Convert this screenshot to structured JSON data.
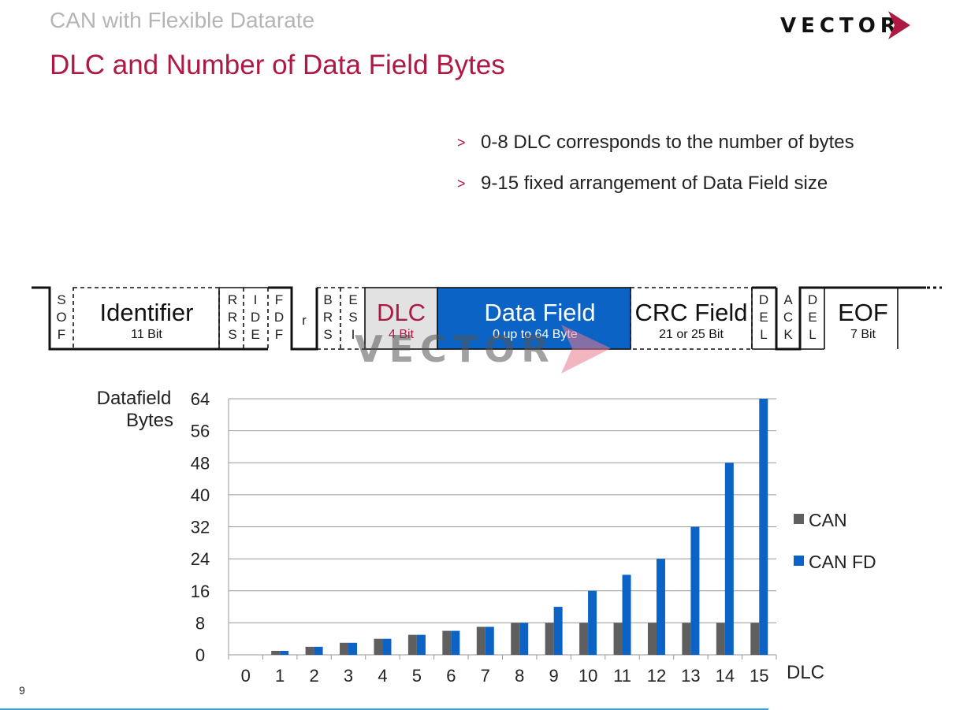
{
  "slide": {
    "subtitle": "CAN with Flexible Datarate",
    "title": "DLC and Number of Data Field Bytes",
    "page_number": "9",
    "logo_text": "VECTOR",
    "watermark_text": "VECTOR",
    "accent": "#ae1943",
    "brand_blue": "#0b63c5"
  },
  "bullets": [
    "0-8 DLC corresponds to the number of bytes",
    "9-15 fixed arrangement of Data Field size"
  ],
  "frame": {
    "sof": [
      "S",
      "O",
      "F"
    ],
    "identifier": {
      "name": "Identifier",
      "size": "11 Bit"
    },
    "rrs": [
      "R",
      "R",
      "S"
    ],
    "ide": [
      "I",
      "D",
      "E"
    ],
    "fdf": [
      "F",
      "D",
      "F"
    ],
    "r": "r",
    "brs": [
      "B",
      "R",
      "S"
    ],
    "esi": [
      "E",
      "S",
      "I"
    ],
    "dlc": {
      "name": "DLC",
      "size": "4 Bit"
    },
    "data": {
      "name": "Data Field",
      "size": "0 up to 64 Byte"
    },
    "crc": {
      "name": "CRC Field",
      "size": "21 or 25 Bit"
    },
    "del1": [
      "D",
      "E",
      "L"
    ],
    "ack": [
      "A",
      "C",
      "K"
    ],
    "del2": [
      "D",
      "E",
      "L"
    ],
    "eof": {
      "name": "EOF",
      "size": "7 Bit"
    }
  },
  "chart_data": {
    "type": "bar",
    "ylabel": "Datafield Bytes",
    "xlabel": "DLC",
    "categories": [
      "0",
      "1",
      "2",
      "3",
      "4",
      "5",
      "6",
      "7",
      "8",
      "9",
      "10",
      "11",
      "12",
      "13",
      "14",
      "15"
    ],
    "yticks": [
      "0",
      "8",
      "16",
      "24",
      "32",
      "40",
      "48",
      "56",
      "64"
    ],
    "ylim": [
      0,
      64
    ],
    "grid": true,
    "legend_position": "right",
    "series": [
      {
        "name": "CAN",
        "color": "#5f5f5f",
        "values": [
          0,
          1,
          2,
          3,
          4,
          5,
          6,
          7,
          8,
          8,
          8,
          8,
          8,
          8,
          8,
          8
        ]
      },
      {
        "name": "CAN FD",
        "color": "#0b63c5",
        "values": [
          0,
          1,
          2,
          3,
          4,
          5,
          6,
          7,
          8,
          12,
          16,
          20,
          24,
          32,
          48,
          64
        ]
      }
    ]
  }
}
